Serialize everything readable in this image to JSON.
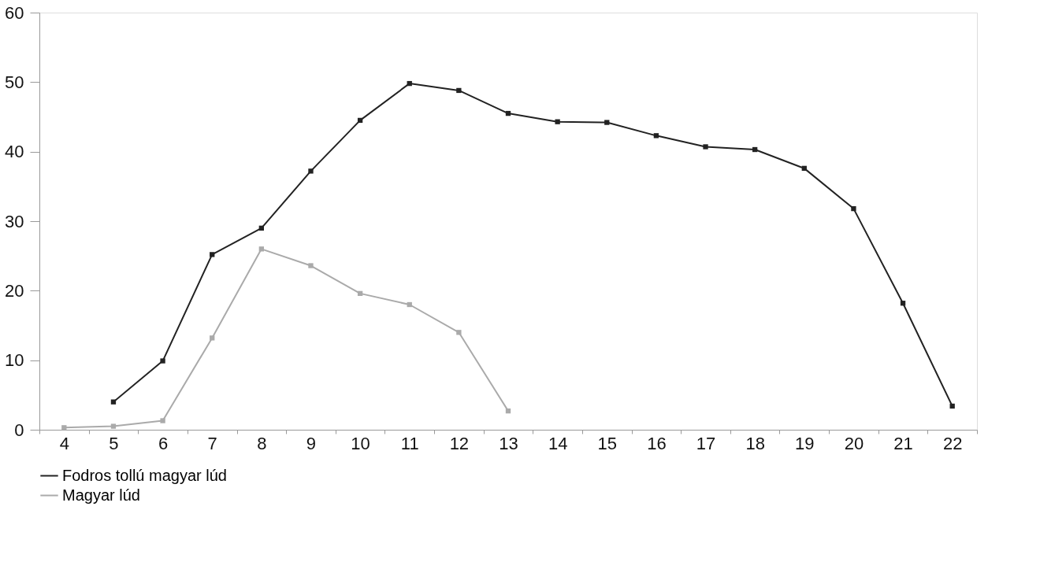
{
  "chart_data": {
    "type": "line",
    "categories": [
      "4",
      "5",
      "6",
      "7",
      "8",
      "9",
      "10",
      "11",
      "12",
      "13",
      "14",
      "15",
      "16",
      "17",
      "18",
      "19",
      "20",
      "21",
      "22"
    ],
    "series": [
      {
        "name": "Fodros tollú magyar lúd",
        "color": "#222222",
        "values": [
          null,
          4.0,
          9.9,
          25.2,
          29.0,
          37.2,
          44.5,
          49.8,
          48.8,
          45.5,
          44.3,
          44.2,
          42.3,
          40.7,
          40.3,
          37.6,
          31.8,
          18.2,
          3.4
        ]
      },
      {
        "name": "Magyar lúd",
        "color": "#aaaaaa",
        "values": [
          0.3,
          0.5,
          1.3,
          13.2,
          26.0,
          23.6,
          19.6,
          18.0,
          14.0,
          2.7,
          null,
          null,
          null,
          null,
          null,
          null,
          null,
          null,
          null
        ]
      }
    ],
    "ylim": [
      0,
      60
    ],
    "yticks": [
      0,
      10,
      20,
      30,
      40,
      50,
      60
    ],
    "grid": false,
    "legend": "bottom",
    "marker": "square",
    "line_style": "solid"
  }
}
